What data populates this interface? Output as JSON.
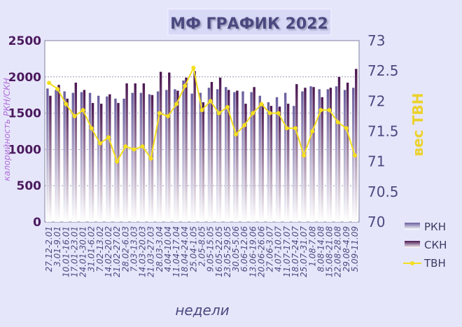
{
  "chart_data": {
    "type": "bar+line",
    "title": "МФ ГРАФИК 2022",
    "xlabel": "недели",
    "ylabel_left": "калорийность РКН/СКН",
    "ylabel_right": "вес ТВН",
    "ylim_left": [
      0,
      2500
    ],
    "yticks_left": [
      "0",
      "500",
      "1000",
      "1500",
      "2000",
      "2500"
    ],
    "ylim_right": [
      70,
      73
    ],
    "yticks_right": [
      "70",
      "70.5",
      "71",
      "71.5",
      "72",
      "72.5",
      "73"
    ],
    "grid": true,
    "legend_position": "bottom-right",
    "categories": [
      "27.12-2.01",
      "3.01-9.01",
      "10.01-16.01",
      "17.01-23.01",
      "24.01-30.01",
      "31.01-6.02",
      "7.02-13.02",
      "14.02-20.02",
      "21.02-27.02",
      "28.02-6.03",
      "7.03-13.03",
      "14.03-20.03",
      "21.03-27.03",
      "28.03-3.04",
      "4.04-10.04",
      "11.04-17.04",
      "18.04-24.04",
      "25.04-1.05",
      "2.05-8.05",
      "9.05-15.05",
      "16.05-22.05",
      "23.05-29.05",
      "30.05-5.06",
      "6.06-12.06",
      "13.06-19.06",
      "20.06-26.06",
      "27.06-3.07",
      "4.07-10.07",
      "11.07-17.07",
      "18.07-24.07",
      "25.07-31.07",
      "1.08-7.08",
      "8.08-14.08",
      "15.08-21.08",
      "22.08-28.08",
      "29.08-4.09",
      "5.09-11.09"
    ],
    "series": [
      {
        "name": "РКН",
        "kind": "bar",
        "color": "#6a5d9e",
        "values": [
          1840,
          1820,
          1800,
          1780,
          1790,
          1780,
          1740,
          1730,
          1700,
          1700,
          1780,
          1780,
          1760,
          1800,
          1820,
          1830,
          1950,
          1770,
          1780,
          1850,
          1830,
          1860,
          1790,
          1800,
          1790,
          1740,
          1650,
          1720,
          1780,
          1600,
          1800,
          1870,
          1830,
          1830,
          1870,
          1820,
          1850
        ]
      },
      {
        "name": "СКН",
        "kind": "bar",
        "color": "#4a1550",
        "values": [
          1740,
          1890,
          1700,
          1920,
          1820,
          1640,
          1630,
          1760,
          1640,
          1910,
          1910,
          1910,
          1750,
          2070,
          2060,
          1810,
          1990,
          2080,
          1650,
          1930,
          1990,
          1820,
          1810,
          1630,
          1860,
          1620,
          1600,
          1590,
          1630,
          1900,
          1850,
          1860,
          1720,
          1850,
          2000,
          1920,
          2110
        ]
      },
      {
        "name": "ТВН",
        "kind": "line",
        "color": "#f4de1e",
        "values": [
          72.3,
          72.2,
          71.95,
          71.75,
          71.85,
          71.55,
          71.3,
          71.4,
          71.0,
          71.25,
          71.2,
          71.25,
          71.05,
          71.8,
          71.75,
          71.95,
          72.25,
          72.55,
          71.85,
          72.0,
          71.8,
          71.9,
          71.45,
          71.6,
          71.8,
          71.95,
          71.8,
          71.8,
          71.55,
          71.55,
          71.1,
          71.5,
          71.85,
          71.85,
          71.65,
          71.55,
          71.1
        ]
      }
    ]
  }
}
